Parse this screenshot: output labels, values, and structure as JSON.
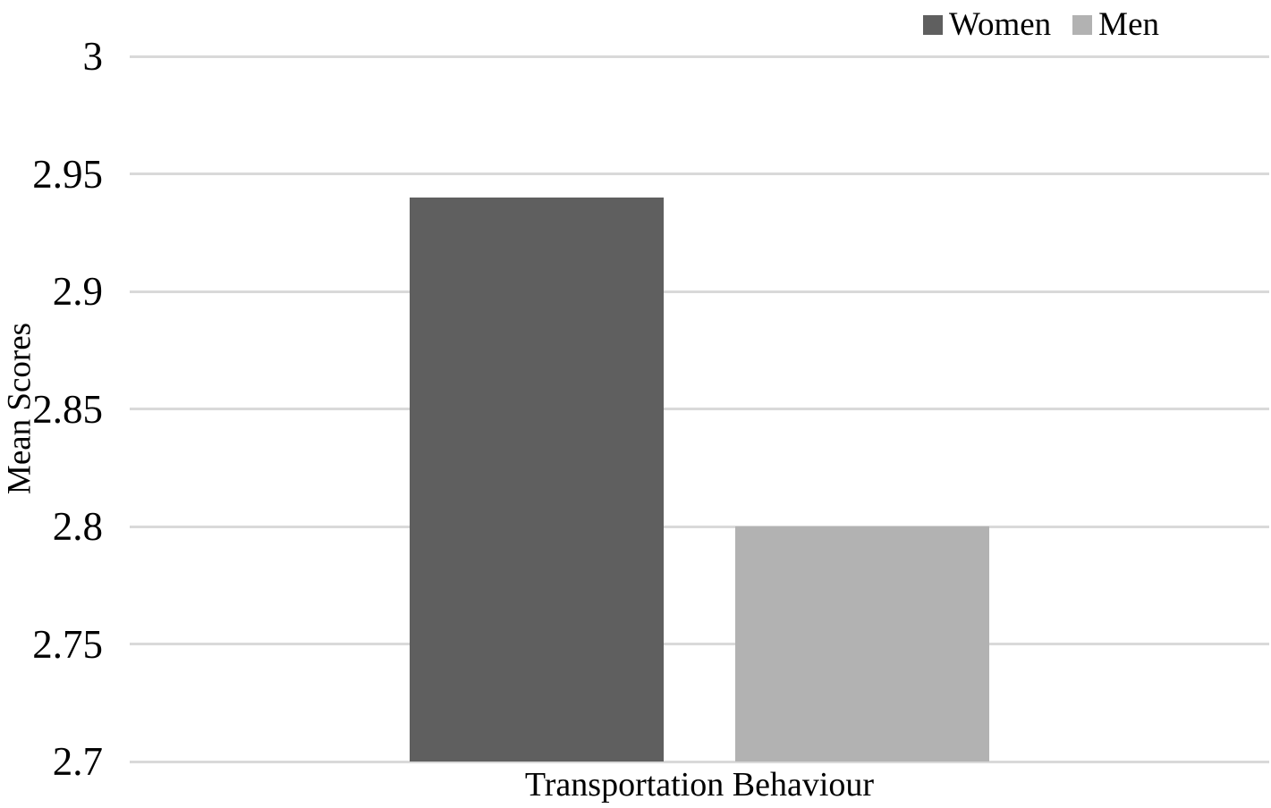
{
  "chart_data": {
    "type": "bar",
    "title": "",
    "categories": [
      "Transportation Behaviour"
    ],
    "series": [
      {
        "name": "Women",
        "values": [
          2.94
        ],
        "color": "#5f5f5f"
      },
      {
        "name": "Men",
        "values": [
          2.8
        ],
        "color": "#b2b2b2"
      }
    ],
    "xlabel": "Transportation Behaviour",
    "ylabel": "Mean Scores",
    "ylim": [
      2.7,
      3.0
    ],
    "ytick_step": 0.05,
    "yticks": [
      "3",
      "2.95",
      "2.9",
      "2.85",
      "2.8",
      "2.75",
      "2.7"
    ],
    "grid": true,
    "gridline_color": "#d9d9d9",
    "axis_line_color": "#d9d9d9",
    "background_color": "#ffffff",
    "text_color": "#000000",
    "legend_position": "top-right",
    "legend_entries": [
      "Women",
      "Men"
    ]
  }
}
